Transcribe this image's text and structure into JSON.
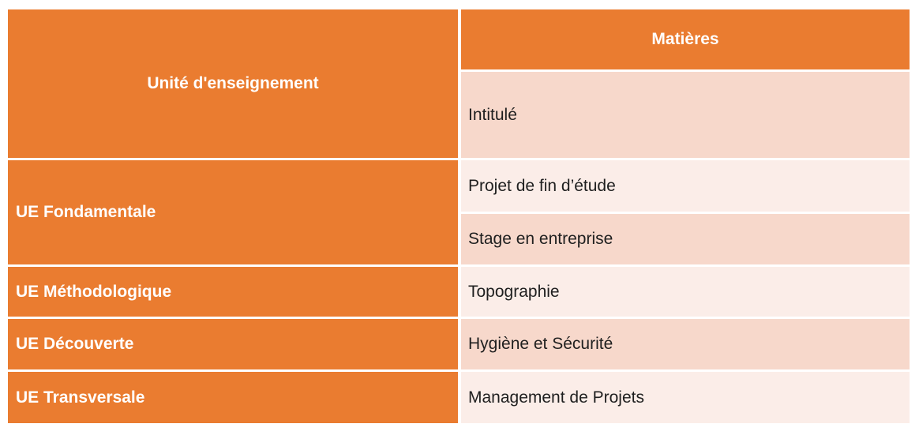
{
  "page": {
    "background": "#ffffff"
  },
  "table": {
    "colors": {
      "header_orange": "#EA7C30",
      "band_dark": "#F7D8CB",
      "band_light": "#FBEDE8",
      "header_text": "#FFFFFF",
      "body_text": "#1F1F1F"
    },
    "headers": {
      "unite": "Unité d'enseignement",
      "matieres": "Matières",
      "intitule": "Intitulé"
    },
    "rows": [
      {
        "ue": "UE Fondamentale",
        "matieres": [
          "Projet de fin d’étude",
          "Stage en entreprise"
        ]
      },
      {
        "ue": "UE Méthodologique",
        "matieres": [
          "Topographie"
        ]
      },
      {
        "ue": "UE Découverte",
        "matieres": [
          "Hygiène et Sécurité"
        ]
      },
      {
        "ue": "UE Transversale",
        "matieres": [
          "Management de Projets"
        ]
      }
    ]
  }
}
